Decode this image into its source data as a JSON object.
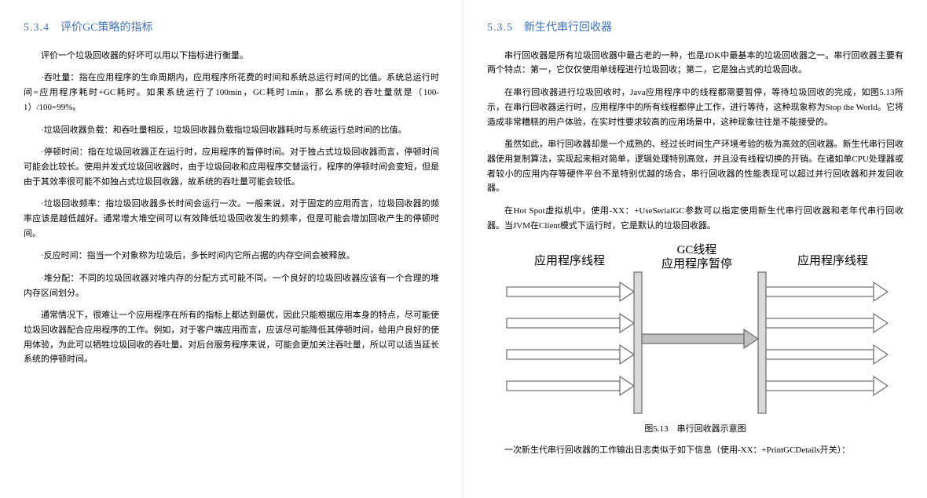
{
  "left": {
    "heading_num": "5.3.4",
    "heading_text": "评价GC策略的指标",
    "p1": "评价一个垃圾回收器的好坏可以用以下指标进行衡量。",
    "p2": "·吞吐量：指在应用程序的生命周期内，应用程序所花费的时间和系统总运行时间的比值。系统总运行时间=应用程序耗时+GC耗时。如果系统运行了100min，GC耗时1min，那么系统的吞吐量就是（100-1）/100=99%。",
    "p3": "·垃圾回收器负载：和吞吐量相反，垃圾回收器负载指垃圾回收器耗时与系统运行总时间的比值。",
    "p4": "·停顿时间：指在垃圾回收器正在运行时，应用程序的暂停时间。对于独占式垃圾回收器而言，停顿时间可能会比较长。使用并发式垃圾回收器时，由于垃圾回收和应用程序交替运行，程序的停顿时间会变短，但是由于其效率很可能不如独占式垃圾回收器，故系统的吞吐量可能会较低。",
    "p5": "·垃圾回收频率：指垃圾回收器多长时间会运行一次。一般来说，对于固定的应用而言，垃圾回收器的频率应该是越低越好。通常增大堆空间可以有效降低垃圾回收发生的频率，但是可能会增加回收产生的停顿时间。",
    "p6": "·反应时间：指当一个对象称为垃圾后，多长时间内它所占据的内存空间会被释放。",
    "p7": "·堆分配：不同的垃圾回收器对堆内存的分配方式可能不同。一个良好的垃圾回收器应该有一个合理的堆内存区间划分。",
    "p8": "通常情况下，很难让一个应用程序在所有的指标上都达到最优，因此只能根据应用本身的特点，尽可能使垃圾回收器配合应用程序的工作。例如，对于客户端应用而言，应该尽可能降低其停顿时间，给用户良好的使用体验，为此可以牺牲垃圾回收的吞吐量。对后台服务程序来说，可能会更加关注吞吐量，所以可以适当延长系统的停顿时间。"
  },
  "right": {
    "heading_num": "5.3.5",
    "heading_text": "新生代串行回收器",
    "p1": "串行回收器是所有垃圾回收器中最古老的一种，也是JDK中最基本的垃圾回收器之一。串行回收器主要有两个特点：第一，它仅仅使用单线程进行垃圾回收；第二，它是独占式的垃圾回收。",
    "p2": "在串行回收器进行垃圾回收时，Java应用程序中的线程都需要暂停，等待垃圾回收的完成，如图5.13所示，在串行回收器运行时，应用程序中的所有线程都停止工作，进行等待，这种现象称为Stop the World。它将造成非常糟糕的用户体验，在实时性要求较高的应用场景中，这种现象往往是不能接受的。",
    "p3": "虽然如此，串行回收器却是一个成熟的、经过长时间生产环境考验的极为高效的回收器。新生代串行回收器使用复制算法，实现起来相对简单，逻辑处理特别高效，并且没有线程切换的开销。在诸如单CPU处理器或者较小的应用内存等硬件平台不是特别优越的场合，串行回收器的性能表现可以超过并行回收器和并发回收器。",
    "p4": "在Hot Spot虚拟机中，使用-XX：+UseSerialGC参数可以指定使用新生代串行回收器和老年代串行回收器。当JVM在Client模式下运行时，它是默认的垃圾回收器。",
    "figure": {
      "label_left": "应用程序线程",
      "label_mid_top": "GC线程",
      "label_mid_bottom": "应用程序暂停",
      "label_right": "应用程序线程",
      "caption": "图5.13　串行回收器示意图",
      "stroke_color": "#6b6b6b",
      "fill_color": "#d9d9d9",
      "dark_fill": "#bfbfbf"
    },
    "p5": "一次新生代串行回收器的工作输出日志类似于如下信息（使用-XX：+PrintGCDetails开关）："
  }
}
